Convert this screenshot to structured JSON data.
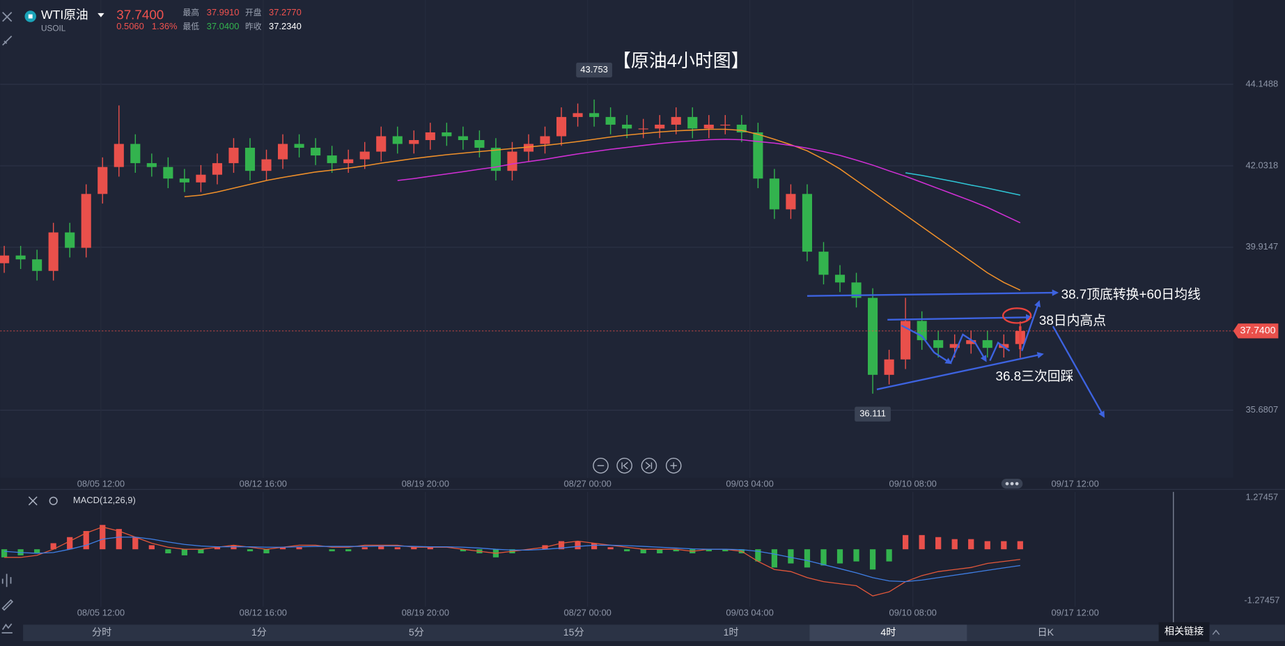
{
  "header": {
    "symbol": "WTI原油",
    "code": "USOIL",
    "price": "37.7400",
    "change": "0.5060",
    "change_pct": "1.36%",
    "stats": [
      {
        "label": "最高",
        "value": "37.9910"
      },
      {
        "label": "开盘",
        "value": "37.2770"
      },
      {
        "label": "最低",
        "value": "37.0400"
      },
      {
        "label": "昨收",
        "value": "37.2340"
      }
    ]
  },
  "tabs": [
    {
      "label": "分时",
      "active": false
    },
    {
      "label": "1分",
      "active": false
    },
    {
      "label": "5分",
      "active": false
    },
    {
      "label": "15分",
      "active": false
    },
    {
      "label": "1时",
      "active": false
    },
    {
      "label": "4时",
      "active": true
    },
    {
      "label": "日K",
      "active": false
    }
  ],
  "link_button": "相关链接",
  "chart_data": [
    {
      "type": "candlestick",
      "title": "【原油4小时图】",
      "annotations": [
        "38.7顶底转换+60日均线",
        "38日内高点",
        "36.8三次回踩"
      ],
      "up_color": "#e9504b",
      "down_color": "#33b34e",
      "grid": true,
      "xlim": [
        -0.25,
        75
      ],
      "xticks": [
        {
          "value": 5.9,
          "label": "08/05 12:00"
        },
        {
          "value": 15.8,
          "label": "08/12 16:00"
        },
        {
          "value": 25.7,
          "label": "08/19 20:00"
        },
        {
          "value": 35.6,
          "label": "08/27 00:00"
        },
        {
          "value": 45.5,
          "label": "09/03 04:00"
        },
        {
          "value": 55.45,
          "label": "09/10 08:00"
        },
        {
          "value": 65.35,
          "label": "09/17 12:00"
        }
      ],
      "ylim": [
        33.92,
        46.34
      ],
      "yticks": [
        44.1488,
        42.0318,
        39.9147,
        35.6807
      ],
      "open": [
        39.5,
        39.7,
        39.6,
        39.3,
        40.3,
        39.9,
        41.3,
        42.0,
        42.6,
        42.1,
        42.0,
        41.7,
        41.6,
        41.8,
        42.1,
        42.5,
        41.9,
        42.2,
        42.6,
        42.5,
        42.3,
        42.1,
        42.2,
        42.4,
        42.8,
        42.6,
        42.7,
        42.9,
        42.8,
        42.7,
        42.5,
        41.9,
        42.4,
        42.6,
        42.8,
        43.3,
        43.4,
        43.3,
        43.1,
        43.0,
        43.0,
        43.1,
        43.3,
        43.0,
        43.1,
        43.1,
        42.9,
        41.7,
        40.9,
        41.3,
        39.8,
        39.2,
        39.0,
        38.6,
        36.6,
        37.0,
        38.0,
        37.5,
        37.3,
        37.4,
        37.5,
        37.3,
        37.4
      ],
      "high": [
        39.95,
        39.95,
        39.85,
        40.55,
        40.55,
        41.55,
        42.25,
        43.6,
        42.85,
        42.35,
        42.25,
        41.95,
        42.05,
        42.35,
        42.75,
        42.75,
        42.45,
        42.85,
        42.85,
        42.75,
        42.55,
        42.45,
        42.65,
        43.05,
        43.05,
        42.95,
        43.15,
        43.15,
        43.05,
        42.95,
        42.75,
        42.65,
        42.85,
        43.05,
        43.55,
        43.65,
        43.753,
        43.55,
        43.35,
        43.25,
        43.35,
        43.55,
        43.55,
        43.35,
        43.35,
        43.35,
        43.15,
        41.95,
        41.55,
        41.55,
        40.05,
        39.45,
        39.25,
        38.85,
        37.25,
        38.6,
        38.25,
        37.75,
        37.65,
        37.75,
        37.75,
        37.65,
        37.99
      ],
      "low": [
        39.25,
        39.35,
        39.05,
        39.05,
        39.65,
        39.65,
        41.05,
        41.75,
        41.85,
        41.75,
        41.45,
        41.35,
        41.35,
        41.55,
        41.85,
        41.65,
        41.65,
        41.95,
        42.25,
        42.05,
        41.85,
        41.85,
        41.95,
        42.15,
        42.35,
        42.35,
        42.45,
        42.55,
        42.45,
        42.25,
        41.65,
        41.65,
        42.15,
        42.35,
        42.55,
        43.05,
        43.05,
        42.85,
        42.75,
        42.75,
        42.75,
        42.85,
        42.75,
        42.75,
        42.85,
        42.65,
        41.45,
        40.65,
        40.65,
        39.55,
        38.95,
        38.75,
        38.35,
        36.111,
        36.35,
        36.75,
        37.25,
        37.05,
        37.05,
        37.15,
        37.05,
        37.05,
        37.04
      ],
      "close": [
        39.7,
        39.6,
        39.3,
        40.3,
        39.9,
        41.3,
        42.0,
        42.6,
        42.1,
        42.0,
        41.7,
        41.6,
        41.8,
        42.1,
        42.5,
        41.9,
        42.2,
        42.6,
        42.5,
        42.3,
        42.1,
        42.2,
        42.4,
        42.8,
        42.6,
        42.7,
        42.9,
        42.8,
        42.7,
        42.5,
        41.9,
        42.4,
        42.6,
        42.8,
        43.3,
        43.4,
        43.3,
        43.1,
        43.0,
        43.0,
        43.1,
        43.3,
        43.0,
        43.1,
        43.1,
        42.9,
        41.7,
        40.9,
        41.3,
        39.8,
        39.2,
        39.0,
        38.6,
        36.6,
        37.0,
        38.0,
        37.5,
        37.3,
        37.4,
        37.5,
        37.3,
        37.4,
        37.74
      ],
      "series": [
        {
          "color": "#f0902a",
          "values": [
            null,
            null,
            null,
            null,
            null,
            null,
            null,
            null,
            null,
            null,
            null,
            41.23,
            41.27,
            41.35,
            41.45,
            41.55,
            41.65,
            41.73,
            41.8,
            41.87,
            41.92,
            41.97,
            42.03,
            42.1,
            42.16,
            42.22,
            42.27,
            42.32,
            42.36,
            42.4,
            42.44,
            42.48,
            42.52,
            42.56,
            42.61,
            42.66,
            42.72,
            42.78,
            42.83,
            42.87,
            42.91,
            42.94,
            42.96,
            42.98,
            42.98,
            42.95,
            42.85,
            42.72,
            42.58,
            42.42,
            42.2,
            41.95,
            41.65,
            41.35,
            41.05,
            40.75,
            40.45,
            40.15,
            39.85,
            39.55,
            39.25,
            39.0,
            38.8
          ]
        },
        {
          "color": "#d22fd6",
          "values": [
            null,
            null,
            null,
            null,
            null,
            null,
            null,
            null,
            null,
            null,
            null,
            null,
            null,
            null,
            null,
            null,
            null,
            null,
            null,
            null,
            null,
            null,
            null,
            null,
            41.65,
            41.7,
            41.76,
            41.82,
            41.88,
            41.94,
            42.0,
            42.08,
            42.14,
            42.2,
            42.27,
            42.34,
            42.4,
            42.46,
            42.51,
            42.56,
            42.61,
            42.65,
            42.68,
            42.71,
            42.72,
            42.71,
            42.66,
            42.62,
            42.56,
            42.49,
            42.4,
            42.3,
            42.18,
            42.05,
            41.9,
            41.76,
            41.6,
            41.44,
            41.28,
            41.12,
            40.95,
            40.75,
            40.55
          ]
        },
        {
          "color": "#2fc6d6",
          "values": [
            null,
            null,
            null,
            null,
            null,
            null,
            null,
            null,
            null,
            null,
            null,
            null,
            null,
            null,
            null,
            null,
            null,
            null,
            null,
            null,
            null,
            null,
            null,
            null,
            null,
            null,
            null,
            null,
            null,
            null,
            null,
            null,
            null,
            null,
            null,
            null,
            null,
            null,
            null,
            null,
            null,
            null,
            null,
            null,
            null,
            null,
            null,
            null,
            null,
            null,
            null,
            null,
            null,
            null,
            null,
            41.85,
            41.78,
            41.7,
            41.62,
            41.53,
            41.45,
            41.36,
            41.27
          ]
        }
      ]
    },
    {
      "type": "macd",
      "title": "MACD(12,26,9)",
      "up_color": "#e9504b",
      "down_color": "#33b34e",
      "xlim": [
        -0.25,
        75
      ],
      "xticks": [
        {
          "value": 5.9,
          "label": "08/05 12:00"
        },
        {
          "value": 15.8,
          "label": "08/12 16:00"
        },
        {
          "value": 25.7,
          "label": "08/19 20:00"
        },
        {
          "value": 35.6,
          "label": "08/27 00:00"
        },
        {
          "value": 45.5,
          "label": "09/03 04:00"
        },
        {
          "value": 55.45,
          "label": "09/10 08:00"
        },
        {
          "value": 65.35,
          "label": "09/17 12:00"
        }
      ],
      "ylim": [
        -1.416,
        1.416
      ],
      "yticks": [
        1.27457,
        -1.27457
      ],
      "values": [
        -0.2,
        -0.15,
        -0.1,
        0.15,
        0.3,
        0.45,
        0.6,
        0.5,
        0.3,
        0.1,
        -0.1,
        -0.15,
        -0.1,
        0.05,
        0.1,
        -0.05,
        -0.1,
        0.05,
        0.05,
        0.0,
        -0.05,
        -0.05,
        0.05,
        0.1,
        0.05,
        0.05,
        0.05,
        0.0,
        -0.05,
        -0.1,
        -0.2,
        -0.1,
        0.0,
        0.1,
        0.2,
        0.2,
        0.15,
        0.05,
        -0.05,
        -0.1,
        -0.1,
        -0.05,
        -0.1,
        -0.05,
        -0.05,
        -0.1,
        -0.3,
        -0.45,
        -0.35,
        -0.45,
        -0.4,
        -0.35,
        -0.3,
        -0.5,
        -0.3,
        0.35,
        0.35,
        0.3,
        0.25,
        0.25,
        0.2,
        0.2,
        0.2
      ],
      "series": [
        {
          "color": "#e4573a",
          "values": [
            -0.2,
            -0.2,
            -0.15,
            0.0,
            0.2,
            0.4,
            0.55,
            0.45,
            0.3,
            0.15,
            0.05,
            0.0,
            0.0,
            0.05,
            0.1,
            0.05,
            0.0,
            0.05,
            0.1,
            0.1,
            0.05,
            0.05,
            0.1,
            0.1,
            0.1,
            0.05,
            0.05,
            0.05,
            0.0,
            -0.05,
            -0.1,
            -0.05,
            0.0,
            0.05,
            0.15,
            0.2,
            0.15,
            0.1,
            0.05,
            0.0,
            0.0,
            0.0,
            -0.05,
            0.0,
            0.0,
            -0.05,
            -0.3,
            -0.5,
            -0.55,
            -0.7,
            -0.8,
            -0.85,
            -0.9,
            -1.15,
            -1.05,
            -0.8,
            -0.65,
            -0.55,
            -0.5,
            -0.45,
            -0.35,
            -0.3,
            -0.25
          ]
        },
        {
          "color": "#3f7fe6",
          "values": [
            -0.05,
            -0.08,
            -0.1,
            -0.08,
            0.0,
            0.1,
            0.25,
            0.3,
            0.3,
            0.25,
            0.18,
            0.12,
            0.08,
            0.06,
            0.06,
            0.06,
            0.05,
            0.05,
            0.06,
            0.07,
            0.07,
            0.07,
            0.07,
            0.08,
            0.08,
            0.07,
            0.06,
            0.06,
            0.05,
            0.03,
            0.0,
            -0.02,
            -0.02,
            0.0,
            0.03,
            0.07,
            0.1,
            0.1,
            0.09,
            0.07,
            0.05,
            0.03,
            0.01,
            0.0,
            0.0,
            -0.01,
            -0.05,
            -0.12,
            -0.2,
            -0.28,
            -0.38,
            -0.48,
            -0.58,
            -0.7,
            -0.78,
            -0.8,
            -0.76,
            -0.7,
            -0.64,
            -0.58,
            -0.52,
            -0.46,
            -0.4
          ]
        }
      ]
    }
  ]
}
